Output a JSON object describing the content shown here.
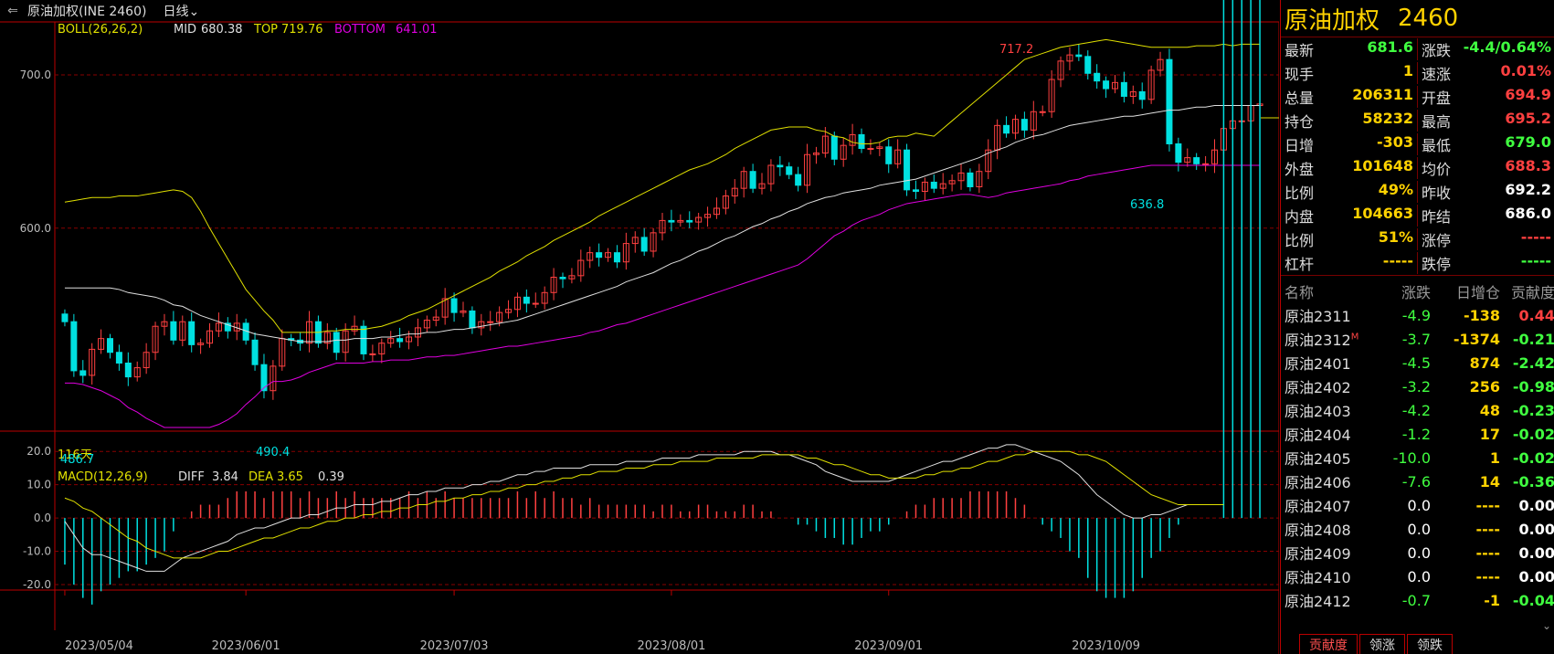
{
  "title": "原油加权(INE 2460)",
  "period": "日线",
  "indicator_main": {
    "name": "BOLL(26,26,2)",
    "mid_label": "MID",
    "mid": "680.38",
    "top_label": "TOP",
    "top": "719.76",
    "bottom_label": "BOTTOM",
    "bottom": "641.01"
  },
  "indicator_sub": {
    "name": "MACD(12,26,9)",
    "diff_label": "DIFF",
    "diff": "3.84",
    "dea_label": "DEA",
    "dea": "3.65",
    "macd": "0.39"
  },
  "annotations": {
    "high": "717.2",
    "low_local": "636.8",
    "low_prev": "490.4",
    "old1": "116天",
    "old2": "486.7"
  },
  "side": {
    "name": "原油加权",
    "code": "2460",
    "quote": [
      {
        "l": "最新",
        "lv": "681.6",
        "lc": "#40ff40",
        "r": "涨跌",
        "rv": "-4.4/0.64%",
        "rc": "#40ff40"
      },
      {
        "l": "现手",
        "lv": "1",
        "lc": "#ffd200",
        "r": "速涨",
        "rv": "0.01%",
        "rc": "#ff4040"
      },
      {
        "l": "总量",
        "lv": "206311",
        "lc": "#ffd200",
        "r": "开盘",
        "rv": "694.9",
        "rc": "#ff4040"
      },
      {
        "l": "持仓",
        "lv": "58232",
        "lc": "#ffd200",
        "r": "最高",
        "rv": "695.2",
        "rc": "#ff4040"
      },
      {
        "l": "日增",
        "lv": "-303",
        "lc": "#ffd200",
        "r": "最低",
        "rv": "679.0",
        "rc": "#40ff40"
      },
      {
        "l": "外盘",
        "lv": "101648",
        "lc": "#ffd200",
        "r": "均价",
        "rv": "688.3",
        "rc": "#ff4040"
      },
      {
        "l": "比例",
        "lv": "49%",
        "lc": "#ffd200",
        "r": "昨收",
        "rv": "692.2",
        "rc": "#ffffff"
      },
      {
        "l": "内盘",
        "lv": "104663",
        "lc": "#ffd200",
        "r": "昨结",
        "rv": "686.0",
        "rc": "#ffffff"
      },
      {
        "l": "比例",
        "lv": "51%",
        "lc": "#ffd200",
        "r": "涨停",
        "rv": "-----",
        "rc": "#ff4040"
      },
      {
        "l": "杠杆",
        "lv": "-----",
        "lc": "#ffd200",
        "r": "跌停",
        "rv": "-----",
        "rc": "#40ff40"
      }
    ],
    "contracts_header": [
      "名称",
      "涨跌",
      "日增仓",
      "贡献度"
    ],
    "contracts": [
      {
        "n": "原油2311",
        "m": "",
        "chg": "-4.9",
        "add": "-138",
        "con": "0.44",
        "cc": "#ff4040",
        "chgc": "#40ff40",
        "addc": "#ffd200"
      },
      {
        "n": "原油2312",
        "m": "M",
        "chg": "-3.7",
        "add": "-1374",
        "con": "-0.21",
        "cc": "#40ff40",
        "chgc": "#40ff40",
        "addc": "#ffd200"
      },
      {
        "n": "原油2401",
        "m": "",
        "chg": "-4.5",
        "add": "874",
        "con": "-2.42",
        "cc": "#40ff40",
        "chgc": "#40ff40",
        "addc": "#ffd200"
      },
      {
        "n": "原油2402",
        "m": "",
        "chg": "-3.2",
        "add": "256",
        "con": "-0.98",
        "cc": "#40ff40",
        "chgc": "#40ff40",
        "addc": "#ffd200"
      },
      {
        "n": "原油2403",
        "m": "",
        "chg": "-4.2",
        "add": "48",
        "con": "-0.23",
        "cc": "#40ff40",
        "chgc": "#40ff40",
        "addc": "#ffd200"
      },
      {
        "n": "原油2404",
        "m": "",
        "chg": "-1.2",
        "add": "17",
        "con": "-0.02",
        "cc": "#40ff40",
        "chgc": "#40ff40",
        "addc": "#ffd200"
      },
      {
        "n": "原油2405",
        "m": "",
        "chg": "-10.0",
        "add": "1",
        "con": "-0.02",
        "cc": "#40ff40",
        "chgc": "#40ff40",
        "addc": "#ffd200"
      },
      {
        "n": "原油2406",
        "m": "",
        "chg": "-7.6",
        "add": "14",
        "con": "-0.36",
        "cc": "#40ff40",
        "chgc": "#40ff40",
        "addc": "#ffd200"
      },
      {
        "n": "原油2407",
        "m": "",
        "chg": "0.0",
        "add": "----",
        "con": "0.00",
        "cc": "#ffffff",
        "chgc": "#ffffff",
        "addc": "#ffd200"
      },
      {
        "n": "原油2408",
        "m": "",
        "chg": "0.0",
        "add": "----",
        "con": "0.00",
        "cc": "#ffffff",
        "chgc": "#ffffff",
        "addc": "#ffd200"
      },
      {
        "n": "原油2409",
        "m": "",
        "chg": "0.0",
        "add": "----",
        "con": "0.00",
        "cc": "#ffffff",
        "chgc": "#ffffff",
        "addc": "#ffd200"
      },
      {
        "n": "原油2410",
        "m": "",
        "chg": "0.0",
        "add": "----",
        "con": "0.00",
        "cc": "#ffffff",
        "chgc": "#ffffff",
        "addc": "#ffd200"
      },
      {
        "n": "原油2412",
        "m": "",
        "chg": "-0.7",
        "add": "-1",
        "con": "-0.04",
        "cc": "#40ff40",
        "chgc": "#40ff40",
        "addc": "#ffd200"
      }
    ],
    "tabs": [
      "贡献度",
      "领涨",
      "领跌"
    ]
  },
  "chart_data": {
    "type": "candlestick",
    "x_ticks": [
      "2023/05/04",
      "2023/06/01",
      "2023/07/03",
      "2023/08/01",
      "2023/09/01",
      "2023/10/09"
    ],
    "price_ticks": [
      700.0,
      600.0
    ],
    "macd_ticks": [
      20.0,
      10.0,
      0.0,
      -10.0,
      -20.0
    ],
    "price_range": [
      470,
      725
    ],
    "macd_range": [
      -20,
      25
    ],
    "closes": [
      539,
      507,
      504,
      521,
      528,
      519,
      512,
      503,
      509,
      519,
      536,
      539,
      527,
      539,
      524,
      525,
      533,
      538,
      533,
      538,
      527,
      511,
      494,
      510,
      528,
      527,
      525,
      539,
      525,
      532,
      519,
      533,
      536,
      518,
      518,
      525,
      528,
      526,
      529,
      535,
      540,
      542,
      554,
      545,
      546,
      535,
      539,
      539,
      545,
      547,
      555,
      551,
      551,
      558,
      568,
      567,
      569,
      579,
      584,
      581,
      584,
      578,
      590,
      594,
      585,
      597,
      605,
      604,
      605,
      604,
      607,
      609,
      613,
      621,
      626,
      637,
      626,
      629,
      641,
      640,
      635,
      628,
      648,
      649,
      660,
      645,
      654,
      661,
      652,
      652,
      653,
      642,
      651,
      625,
      624,
      630,
      626,
      629,
      631,
      636,
      627,
      637,
      651,
      667,
      662,
      671,
      664,
      676,
      676,
      697,
      709,
      713,
      712,
      701,
      696,
      691,
      695,
      686,
      689,
      684,
      703,
      710,
      655,
      643,
      646,
      642,
      642,
      651,
      665,
      670,
      670,
      680,
      681
    ],
    "boll_top": [
      617,
      618,
      619,
      620,
      620,
      620,
      621,
      621,
      621,
      622,
      623,
      624,
      625,
      624,
      620,
      611,
      600,
      590,
      580,
      570,
      560,
      553,
      546,
      540,
      532,
      532,
      532,
      532,
      532,
      533,
      533,
      534,
      534,
      534,
      535,
      536,
      538,
      540,
      543,
      545,
      547,
      550,
      553,
      556,
      559,
      562,
      565,
      568,
      572,
      575,
      578,
      582,
      585,
      588,
      592,
      595,
      598,
      601,
      604,
      608,
      611,
      614,
      617,
      620,
      623,
      626,
      629,
      632,
      635,
      638,
      640,
      642,
      645,
      648,
      652,
      655,
      658,
      661,
      664,
      665,
      666,
      666,
      666,
      664,
      663,
      660,
      659,
      656,
      655,
      655,
      656,
      659,
      660,
      660,
      662,
      661,
      660,
      665,
      670,
      675,
      680,
      685,
      690,
      695,
      700,
      705,
      710,
      712,
      714,
      716,
      718,
      719,
      720,
      721,
      722,
      723,
      722,
      721,
      720,
      719,
      718,
      718,
      718,
      718,
      718,
      719,
      719,
      719,
      720,
      719,
      720,
      720,
      720
    ],
    "boll_mid": [
      561,
      561,
      561,
      561,
      561,
      561,
      560,
      558,
      557,
      556,
      555,
      553,
      550,
      549,
      546,
      543,
      541,
      539,
      537,
      535,
      533,
      531,
      530,
      529,
      528,
      527,
      526,
      526,
      526,
      526,
      527,
      527,
      528,
      528,
      528,
      529,
      529,
      530,
      531,
      531,
      532,
      532,
      533,
      534,
      534,
      535,
      536,
      537,
      538,
      539,
      540,
      542,
      544,
      546,
      548,
      550,
      552,
      554,
      556,
      558,
      560,
      562,
      565,
      567,
      569,
      571,
      574,
      577,
      579,
      582,
      585,
      587,
      590,
      593,
      595,
      598,
      601,
      603,
      606,
      608,
      611,
      613,
      616,
      618,
      620,
      621,
      623,
      624,
      625,
      626,
      628,
      629,
      630,
      631,
      632,
      634,
      636,
      638,
      640,
      642,
      644,
      646,
      649,
      651,
      653,
      656,
      658,
      660,
      661,
      663,
      665,
      667,
      668,
      669,
      670,
      671,
      672,
      673,
      673,
      674,
      675,
      676,
      677,
      677,
      678,
      679,
      679,
      680,
      680,
      680,
      680,
      680,
      680
    ],
    "boll_bot": [
      499,
      499,
      498,
      496,
      494,
      491,
      488,
      483,
      480,
      476,
      473,
      470,
      470,
      470,
      470,
      470,
      470,
      472,
      475,
      479,
      485,
      490,
      496,
      500,
      500,
      501,
      503,
      506,
      508,
      510,
      512,
      512,
      512,
      512,
      513,
      513,
      514,
      514,
      514,
      515,
      516,
      516,
      517,
      517,
      518,
      519,
      520,
      521,
      522,
      523,
      523,
      524,
      525,
      526,
      527,
      528,
      529,
      530,
      532,
      533,
      535,
      537,
      538,
      540,
      542,
      544,
      546,
      548,
      550,
      552,
      554,
      556,
      558,
      560,
      562,
      564,
      566,
      568,
      570,
      572,
      574,
      576,
      580,
      585,
      590,
      595,
      598,
      602,
      605,
      607,
      609,
      612,
      614,
      616,
      617,
      618,
      619,
      620,
      621,
      622,
      622,
      621,
      620,
      621,
      623,
      624,
      625,
      626,
      627,
      628,
      629,
      631,
      632,
      634,
      635,
      636,
      637,
      638,
      639,
      640,
      641,
      641,
      641,
      641,
      641,
      641,
      641,
      641,
      641,
      641,
      641,
      641,
      641
    ],
    "macd_diff": [
      -1,
      -5,
      -9,
      -11,
      -11,
      -12,
      -13,
      -14,
      -15,
      -16,
      -16,
      -16,
      -14,
      -12,
      -11,
      -10,
      -9,
      -8,
      -7,
      -5,
      -4,
      -3,
      -3,
      -2,
      -1,
      0,
      0,
      1,
      1,
      2,
      3,
      3,
      4,
      4,
      4,
      5,
      5,
      6,
      7,
      7,
      8,
      8,
      9,
      9,
      9,
      10,
      10,
      11,
      11,
      12,
      13,
      13,
      14,
      14,
      15,
      15,
      15,
      15,
      16,
      16,
      16,
      16,
      17,
      17,
      17,
      17,
      18,
      18,
      18,
      18,
      19,
      19,
      19,
      19,
      19,
      20,
      20,
      20,
      20,
      19,
      19,
      18,
      17,
      16,
      14,
      13,
      12,
      11,
      11,
      11,
      11,
      11,
      12,
      13,
      14,
      15,
      16,
      17,
      17,
      18,
      19,
      20,
      21,
      21,
      22,
      22,
      21,
      20,
      19,
      18,
      17,
      15,
      13,
      10,
      7,
      5,
      3,
      1,
      0,
      0,
      1,
      1,
      2,
      3,
      4,
      4,
      4,
      4
    ],
    "macd_dea": [
      6,
      5,
      3,
      2,
      0,
      -2,
      -4,
      -6,
      -7,
      -9,
      -10,
      -11,
      -12,
      -12,
      -12,
      -12,
      -11,
      -10,
      -10,
      -9,
      -8,
      -7,
      -6,
      -6,
      -5,
      -4,
      -3,
      -3,
      -2,
      -1,
      -1,
      0,
      0,
      1,
      1,
      2,
      2,
      3,
      3,
      4,
      4,
      5,
      5,
      6,
      6,
      7,
      7,
      8,
      8,
      9,
      9,
      10,
      10,
      11,
      11,
      12,
      12,
      13,
      13,
      14,
      14,
      14,
      15,
      15,
      15,
      16,
      16,
      16,
      17,
      17,
      17,
      17,
      18,
      18,
      18,
      18,
      18,
      19,
      19,
      19,
      19,
      19,
      18,
      18,
      17,
      16,
      16,
      15,
      14,
      13,
      13,
      12,
      12,
      12,
      12,
      13,
      13,
      14,
      14,
      15,
      15,
      16,
      17,
      17,
      18,
      19,
      19,
      20,
      20,
      20,
      20,
      20,
      19,
      19,
      18,
      17,
      15,
      13,
      11,
      9,
      7,
      6,
      5,
      4,
      4,
      4,
      4,
      4,
      4
    ]
  }
}
